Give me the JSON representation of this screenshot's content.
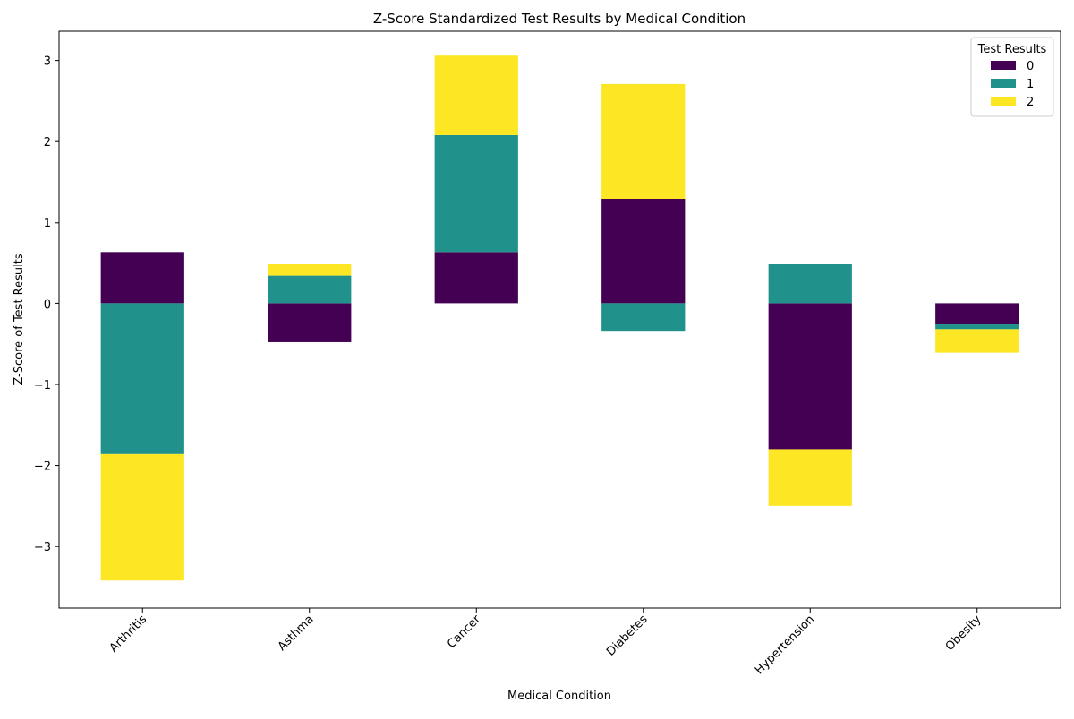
{
  "chart_data": {
    "type": "bar",
    "stacked": true,
    "title": "Z-Score Standardized Test Results by Medical Condition",
    "xlabel": "Medical Condition",
    "ylabel": "Z-Score of Test Results",
    "categories": [
      "Arthritis",
      "Asthma",
      "Cancer",
      "Diabetes",
      "Hypertension",
      "Obesity"
    ],
    "series": [
      {
        "name": "0",
        "color": "#440154",
        "values": [
          0.63,
          -0.47,
          0.63,
          1.29,
          -1.8,
          -0.25
        ]
      },
      {
        "name": "1",
        "color": "#21918c",
        "values": [
          -1.86,
          0.34,
          1.45,
          -0.34,
          0.49,
          -0.07
        ]
      },
      {
        "name": "2",
        "color": "#fde725",
        "values": [
          -1.56,
          0.15,
          0.98,
          1.42,
          -0.7,
          -0.29
        ]
      }
    ],
    "ylim": [
      -3.76,
      3.36
    ],
    "yticks": [
      -3,
      -2,
      -1,
      0,
      1,
      2,
      3
    ],
    "ytick_labels": [
      "−3",
      "−2",
      "−1",
      "0",
      "1",
      "2",
      "3"
    ],
    "grid": false,
    "legend": {
      "title": "Test Results",
      "placement": "top-right"
    }
  }
}
